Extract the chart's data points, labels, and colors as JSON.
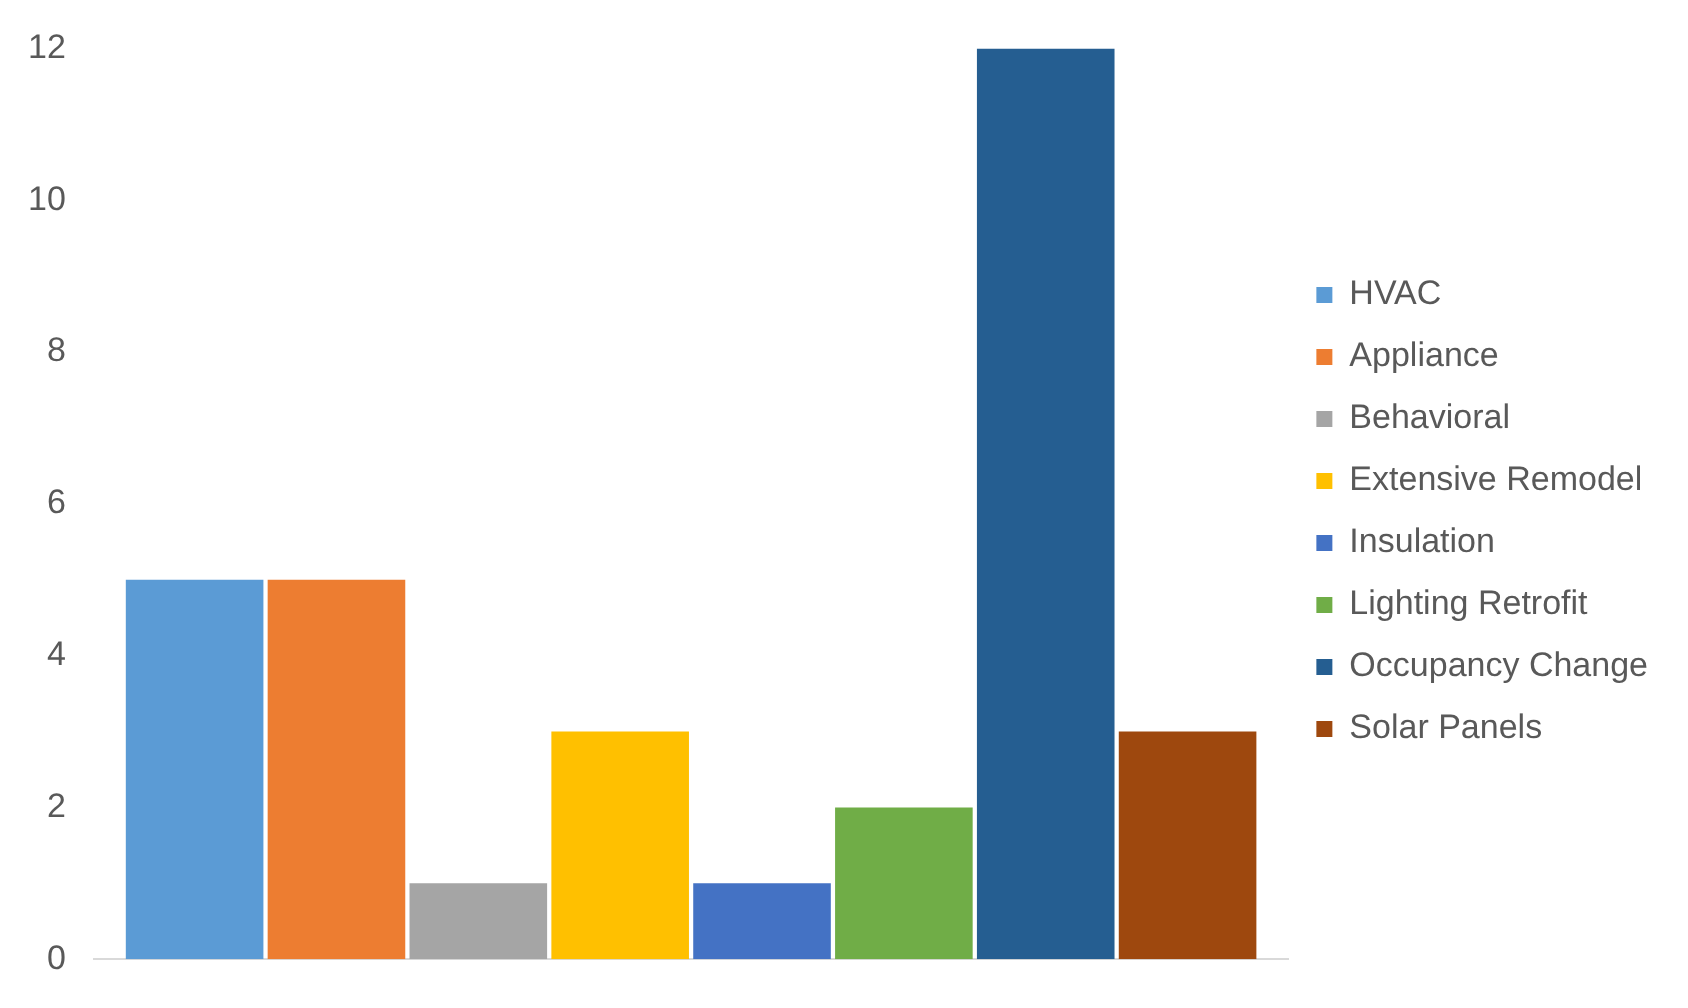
{
  "chart_data": {
    "type": "bar",
    "categories": [
      null
    ],
    "series": [
      {
        "name": "HVAC",
        "color": "#5b9bd5",
        "values": [
          5
        ]
      },
      {
        "name": "Appliance",
        "color": "#ed7d31",
        "values": [
          5
        ]
      },
      {
        "name": "Behavioral",
        "color": "#a5a5a5",
        "values": [
          1
        ]
      },
      {
        "name": "Extensive Remodel",
        "color": "#ffc000",
        "values": [
          3
        ]
      },
      {
        "name": "Insulation",
        "color": "#4472c4",
        "values": [
          1
        ]
      },
      {
        "name": "Lighting Retrofit",
        "color": "#70ad47",
        "values": [
          2
        ]
      },
      {
        "name": "Occupancy Change",
        "color": "#255e91",
        "values": [
          12
        ]
      },
      {
        "name": "Solar Panels",
        "color": "#9e480e",
        "values": [
          3
        ]
      }
    ],
    "ylim": [
      0,
      12
    ],
    "yticks": [
      0,
      2,
      4,
      6,
      8,
      10,
      12
    ],
    "grid": false,
    "legend": "right"
  }
}
